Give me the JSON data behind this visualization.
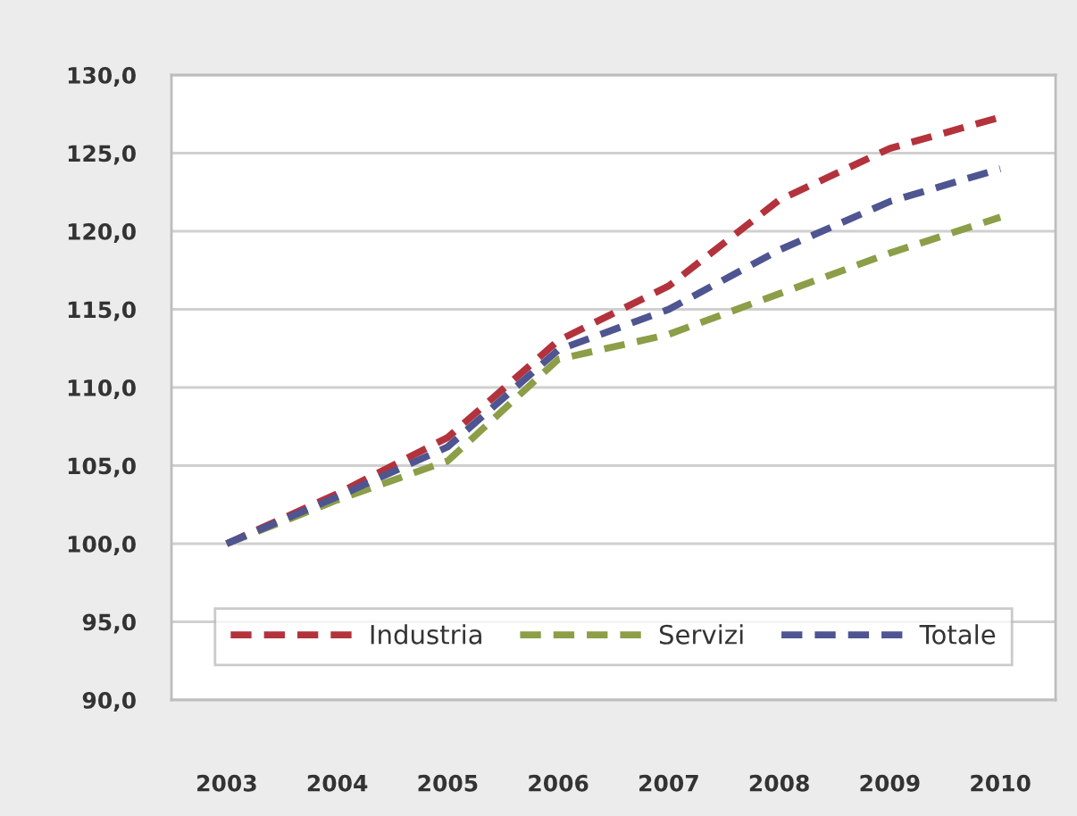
{
  "chart_data": {
    "type": "line",
    "categories": [
      "2003",
      "2004",
      "2005",
      "2006",
      "2007",
      "2008",
      "2009",
      "2010"
    ],
    "series": [
      {
        "name": "Industria",
        "color": "#b3333c",
        "values": [
          100.0,
          103.2,
          106.8,
          113.0,
          116.5,
          122.0,
          125.3,
          127.3
        ]
      },
      {
        "name": "Servizi",
        "color": "#8c9e48",
        "values": [
          100.0,
          102.8,
          105.3,
          111.8,
          113.4,
          116.0,
          118.6,
          120.9
        ]
      },
      {
        "name": "Totale",
        "color": "#4e5590",
        "values": [
          100.0,
          103.0,
          106.2,
          112.4,
          115.0,
          118.8,
          121.9,
          124.0
        ]
      }
    ],
    "ylim": [
      90,
      130
    ],
    "yticks": [
      {
        "value": 90,
        "label": "90,0"
      },
      {
        "value": 95,
        "label": "95,0"
      },
      {
        "value": 100,
        "label": "100,0"
      },
      {
        "value": 105,
        "label": "105,0"
      },
      {
        "value": 110,
        "label": "110,0"
      },
      {
        "value": 115,
        "label": "115,0"
      },
      {
        "value": 120,
        "label": "120,0"
      },
      {
        "value": 125,
        "label": "125,0"
      },
      {
        "value": 130,
        "label": "130,0"
      }
    ],
    "grid": "y",
    "legend": "bottom",
    "line_style": "dashed",
    "marker": "none"
  }
}
